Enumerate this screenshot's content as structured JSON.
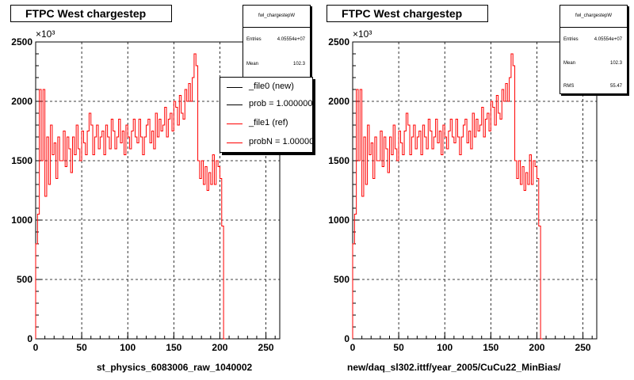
{
  "chart_data": [
    {
      "type": "line",
      "title": "FTPC West chargestep",
      "xlabel": "st_physics_6083006_raw_1040002",
      "ylabel": "",
      "y_multiplier": "×10³",
      "xlim": [
        0,
        265
      ],
      "ylim": [
        0,
        2500
      ],
      "xticks": [
        "0",
        "50",
        "100",
        "150",
        "200",
        "250"
      ],
      "yticks": [
        "0",
        "500",
        "1000",
        "1500",
        "2000",
        "2500"
      ],
      "grid": true,
      "stats": {
        "name": "fwl_chargestepW",
        "rows": [
          {
            "label": "Entries",
            "value": "4.05554e+07"
          },
          {
            "label": "Mean",
            "value": "102.3"
          }
        ]
      },
      "legend": {
        "position": "top-right",
        "entries": [
          {
            "label": "_file0 (new)",
            "color": "#000000"
          },
          {
            "label": "prob = 1.000000",
            "color": "#000000"
          },
          {
            "label": "_file1 (ref)",
            "color": "#ff0000"
          },
          {
            "label": "probN = 1.000000",
            "color": "#ff0000"
          }
        ]
      },
      "series": [
        {
          "name": "_file1 (ref)",
          "color": "#ff0000",
          "x": [
            0,
            2,
            4,
            6,
            8,
            10,
            12,
            14,
            16,
            18,
            20,
            22,
            24,
            26,
            28,
            30,
            32,
            34,
            36,
            38,
            40,
            42,
            44,
            46,
            48,
            50,
            52,
            54,
            56,
            58,
            60,
            62,
            64,
            66,
            68,
            70,
            72,
            74,
            76,
            78,
            80,
            82,
            84,
            86,
            88,
            90,
            92,
            94,
            96,
            98,
            100,
            102,
            104,
            106,
            108,
            110,
            112,
            114,
            116,
            118,
            120,
            122,
            124,
            126,
            128,
            130,
            132,
            134,
            136,
            138,
            140,
            142,
            144,
            146,
            148,
            150,
            152,
            154,
            156,
            158,
            160,
            162,
            164,
            166,
            168,
            170,
            172,
            174,
            176,
            178,
            180,
            182,
            184,
            186,
            188,
            190,
            192,
            194,
            196,
            198,
            200,
            202,
            204
          ],
          "values": [
            800,
            1050,
            2100,
            1500,
            2100,
            1200,
            1700,
            1300,
            1800,
            1550,
            1650,
            1350,
            1700,
            1500,
            1500,
            1750,
            1450,
            1700,
            1600,
            1400,
            1700,
            1550,
            1800,
            1600,
            1500,
            1750,
            1650,
            1550,
            1750,
            1900,
            1800,
            1550,
            1700,
            1800,
            1600,
            1700,
            1750,
            1550,
            1800,
            1700,
            1600,
            1850,
            1750,
            1600,
            1700,
            1850,
            1650,
            1750,
            1550,
            1800,
            1700,
            1600,
            1750,
            1850,
            1700,
            1650,
            1850,
            1700,
            1550,
            1700,
            1800,
            1850,
            1650,
            1750,
            1600,
            1900,
            1700,
            1850,
            1750,
            1800,
            1950,
            1700,
            1850,
            1900,
            1750,
            2000,
            1950,
            1800,
            2050,
            1900,
            1850,
            2100,
            2000,
            2150,
            2000,
            2200,
            2400,
            2300,
            1500,
            1350,
            1500,
            1300,
            1450,
            1250,
            1400,
            1300,
            1550,
            1300,
            1500,
            1450,
            1350,
            950,
            0
          ]
        }
      ]
    },
    {
      "type": "line",
      "title": "FTPC West chargestep",
      "xlabel": "new/daq_sl302.ittf/year_2005/CuCu22_MinBias/",
      "ylabel": "",
      "y_multiplier": "×10³",
      "xlim": [
        0,
        265
      ],
      "ylim": [
        0,
        2500
      ],
      "xticks": [
        "0",
        "50",
        "100",
        "150",
        "200",
        "250"
      ],
      "yticks": [
        "0",
        "500",
        "1000",
        "1500",
        "2000",
        "2500"
      ],
      "grid": true,
      "stats": {
        "name": "fwl_chargestepW",
        "rows": [
          {
            "label": "Entries",
            "value": "4.05554e+07"
          },
          {
            "label": "Mean",
            "value": "102.3"
          },
          {
            "label": "RMS",
            "value": "55.47"
          }
        ]
      },
      "series": [
        {
          "name": "",
          "color": "#ff0000",
          "x": [
            0,
            2,
            4,
            6,
            8,
            10,
            12,
            14,
            16,
            18,
            20,
            22,
            24,
            26,
            28,
            30,
            32,
            34,
            36,
            38,
            40,
            42,
            44,
            46,
            48,
            50,
            52,
            54,
            56,
            58,
            60,
            62,
            64,
            66,
            68,
            70,
            72,
            74,
            76,
            78,
            80,
            82,
            84,
            86,
            88,
            90,
            92,
            94,
            96,
            98,
            100,
            102,
            104,
            106,
            108,
            110,
            112,
            114,
            116,
            118,
            120,
            122,
            124,
            126,
            128,
            130,
            132,
            134,
            136,
            138,
            140,
            142,
            144,
            146,
            148,
            150,
            152,
            154,
            156,
            158,
            160,
            162,
            164,
            166,
            168,
            170,
            172,
            174,
            176,
            178,
            180,
            182,
            184,
            186,
            188,
            190,
            192,
            194,
            196,
            198,
            200,
            202,
            204
          ],
          "values": [
            800,
            1050,
            2100,
            1500,
            2100,
            1200,
            1700,
            1300,
            1800,
            1550,
            1650,
            1350,
            1700,
            1500,
            1500,
            1750,
            1450,
            1700,
            1600,
            1400,
            1700,
            1550,
            1800,
            1600,
            1500,
            1750,
            1650,
            1550,
            1750,
            1900,
            1800,
            1550,
            1700,
            1800,
            1600,
            1700,
            1750,
            1550,
            1800,
            1700,
            1600,
            1850,
            1750,
            1600,
            1700,
            1850,
            1650,
            1750,
            1550,
            1800,
            1700,
            1600,
            1750,
            1850,
            1700,
            1650,
            1850,
            1700,
            1550,
            1700,
            1800,
            1850,
            1650,
            1750,
            1600,
            1900,
            1700,
            1850,
            1750,
            1800,
            1950,
            1700,
            1850,
            1900,
            1750,
            2000,
            1950,
            1800,
            2050,
            1900,
            1850,
            2100,
            2000,
            2150,
            2000,
            2200,
            2400,
            2300,
            1500,
            1350,
            1500,
            1300,
            1450,
            1250,
            1400,
            1300,
            1550,
            1300,
            1500,
            1450,
            1350,
            950,
            0
          ]
        }
      ]
    }
  ]
}
